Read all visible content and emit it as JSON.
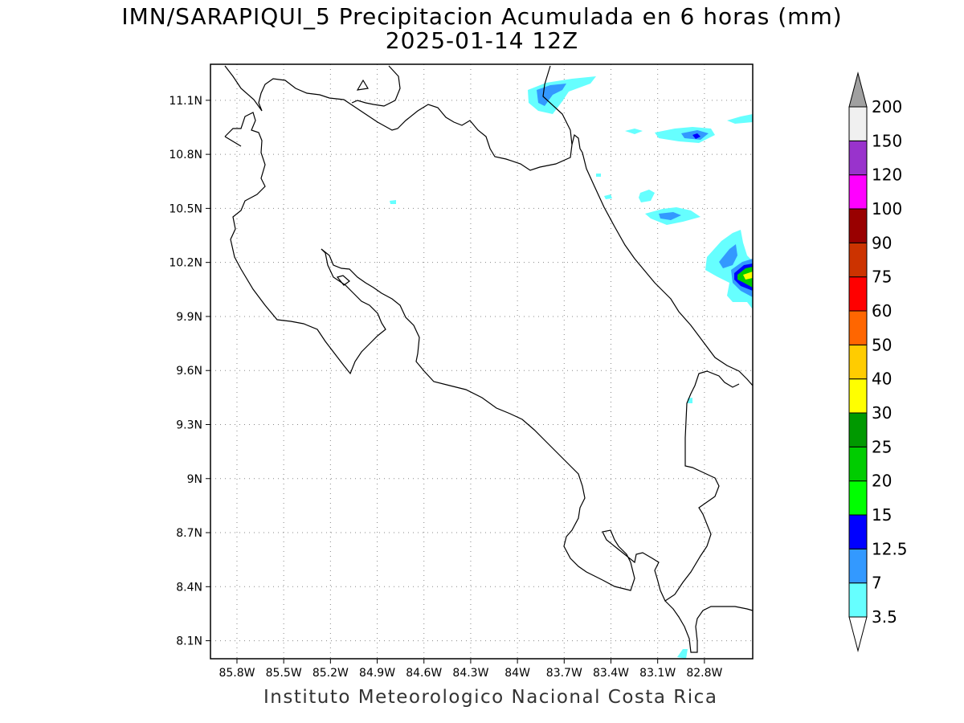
{
  "title": {
    "line1": "IMN/SARAPIQUI_5 Precipitacion Acumulada en 6 horas (mm)",
    "line2": "2025-01-14 12Z"
  },
  "map": {
    "lat_labels": [
      "11.1N",
      "10.8N",
      "10.5N",
      "10.2N",
      "9.9N",
      "9.6N",
      "9.3N",
      "9N",
      "8.7N",
      "8.4N",
      "8.1N"
    ],
    "lat_values": [
      11.1,
      10.8,
      10.5,
      10.2,
      9.9,
      9.6,
      9.3,
      9.0,
      8.7,
      8.4,
      8.1
    ],
    "lon_labels": [
      "85.8W",
      "85.5W",
      "85.2W",
      "84.9W",
      "84.6W",
      "84.3W",
      "84W",
      "83.7W",
      "83.4W",
      "83.1W",
      "82.8W"
    ],
    "lon_values": [
      -85.8,
      -85.5,
      -85.2,
      -84.9,
      -84.6,
      -84.3,
      -84.0,
      -83.7,
      -83.4,
      -83.1,
      -82.8
    ],
    "lon_range": [
      -85.97,
      -82.49
    ],
    "lat_range": [
      8.0,
      11.3
    ],
    "grid": "dotted",
    "coastline_color": "#000000"
  },
  "colorbar": {
    "labels": [
      "3.5",
      "7",
      "12.5",
      "15",
      "20",
      "25",
      "30",
      "40",
      "50",
      "60",
      "75",
      "90",
      "100",
      "120",
      "150",
      "200"
    ],
    "colors": [
      "#66ffff",
      "#3399ff",
      "#0000ff",
      "#00ff00",
      "#00cc00",
      "#009900",
      "#ffff00",
      "#ffcc00",
      "#ff6600",
      "#ff0000",
      "#cc3300",
      "#990000",
      "#ff00ff",
      "#9933cc",
      "#f0f0f0",
      "#a0a0a0"
    ],
    "units": "mm"
  },
  "footer": "Instituto Meteorologico Nacional Costa Rica"
}
